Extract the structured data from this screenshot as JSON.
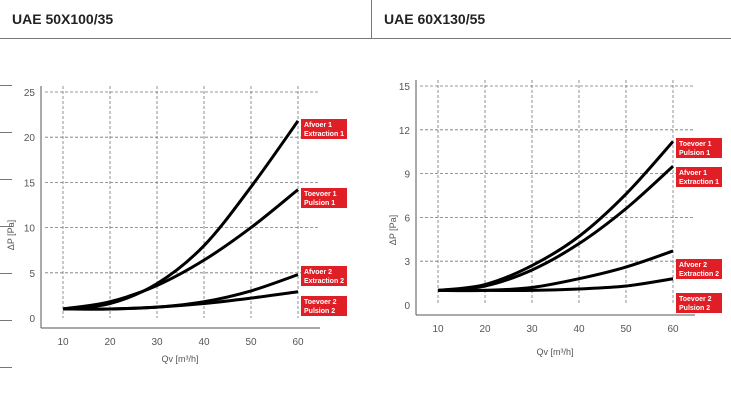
{
  "header": {
    "left_title": "UAE 50X100/35",
    "right_title": "UAE 60X130/55"
  },
  "colors": {
    "curve": "#000000",
    "label_bg": "#e01e26",
    "label_text": "#ffffff"
  },
  "chart_data": [
    {
      "type": "line",
      "title": "UAE 50X100/35",
      "xlabel": "Qv [m³/h]",
      "ylabel": "ΔP [Pa]",
      "xlim": [
        10,
        60
      ],
      "ylim": [
        0,
        25
      ],
      "xticks": [
        10,
        20,
        30,
        40,
        50,
        60
      ],
      "yticks": [
        0,
        5,
        10,
        15,
        20,
        25
      ],
      "grid": true,
      "x": [
        10,
        20,
        30,
        40,
        50,
        60
      ],
      "series": [
        {
          "name": "Afvoer 1 Extraction 1",
          "label_lines": [
            "Afvoer 1",
            "Extraction 1"
          ],
          "values": [
            1,
            1.6,
            3.8,
            8,
            14.5,
            21.8
          ]
        },
        {
          "name": "Toevoer 1 Pulsion 1",
          "label_lines": [
            "Toevoer 1",
            "Pulsion 1"
          ],
          "values": [
            1,
            1.8,
            3.6,
            6.4,
            10,
            14.2
          ]
        },
        {
          "name": "Afvoer 2 Extraction 2",
          "label_lines": [
            "Afvoer 2",
            "Extraction 2"
          ],
          "values": [
            1,
            1,
            1.2,
            1.8,
            3,
            4.8
          ]
        },
        {
          "name": "Toevoer 2 Pulsion 2",
          "label_lines": [
            "Toevoer 2",
            "Pulsion 2"
          ],
          "values": [
            1,
            1,
            1.2,
            1.6,
            2.2,
            2.9
          ]
        }
      ]
    },
    {
      "type": "line",
      "title": "UAE 60X130/55",
      "xlabel": "Qv [m³/h]",
      "ylabel": "ΔP [Pa]",
      "xlim": [
        10,
        60
      ],
      "ylim": [
        0,
        15
      ],
      "xticks": [
        10,
        20,
        30,
        40,
        50,
        60
      ],
      "yticks": [
        0,
        3,
        6,
        9,
        12,
        15
      ],
      "grid": true,
      "x": [
        10,
        20,
        30,
        40,
        50,
        60
      ],
      "series": [
        {
          "name": "Toevoer 1 Pulsion 1",
          "label_lines": [
            "Toevoer 1",
            "Pulsion 1"
          ],
          "values": [
            1,
            1.4,
            2.7,
            4.7,
            7.6,
            11.2
          ]
        },
        {
          "name": "Afvoer 1 Extraction 1",
          "label_lines": [
            "Afvoer 1",
            "Extraction 1"
          ],
          "values": [
            1,
            1.3,
            2.4,
            4.2,
            6.6,
            9.5
          ]
        },
        {
          "name": "Afvoer 2 Extraction 2",
          "label_lines": [
            "Afvoer 2",
            "Extraction 2"
          ],
          "values": [
            1,
            1,
            1.2,
            1.8,
            2.6,
            3.7
          ]
        },
        {
          "name": "Toevoer 2 Pulsion 2",
          "label_lines": [
            "Toevoer 2",
            "Pulsion 2"
          ],
          "values": [
            1,
            1,
            1,
            1.1,
            1.3,
            1.8
          ]
        }
      ]
    }
  ]
}
